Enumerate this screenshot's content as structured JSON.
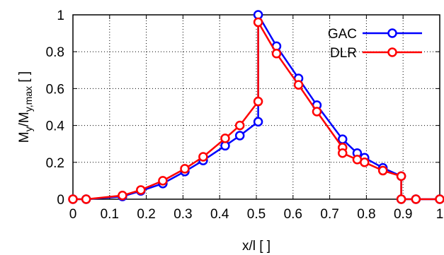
{
  "chart_data": {
    "type": "line",
    "xlabel": "x/l [ ]",
    "ylabel": {
      "prefix": "M",
      "sub1": "y",
      "mid": "/M",
      "sub2": "y,max",
      "suffix": " [ ]"
    },
    "xlim": [
      0,
      1
    ],
    "ylim": [
      0,
      1
    ],
    "xticks": [
      0,
      0.1,
      0.2,
      0.3,
      0.4,
      0.5,
      0.6,
      0.7,
      0.8,
      0.9,
      1
    ],
    "yticks": [
      0,
      0.2,
      0.4,
      0.6,
      0.8,
      1
    ],
    "grid": true,
    "legend_position": "top-right",
    "series": [
      {
        "name": "GAC",
        "color": "#0000ff",
        "x": [
          0,
          0.036,
          0.135,
          0.185,
          0.245,
          0.305,
          0.355,
          0.415,
          0.455,
          0.505,
          0.505,
          0.555,
          0.615,
          0.665,
          0.735,
          0.775,
          0.795,
          0.845,
          0.895,
          0.895,
          0.935,
          1.0
        ],
        "y": [
          0,
          0,
          0.015,
          0.045,
          0.085,
          0.15,
          0.21,
          0.29,
          0.345,
          0.42,
          1.0,
          0.83,
          0.655,
          0.51,
          0.325,
          0.25,
          0.225,
          0.17,
          0.125,
          0,
          0,
          0
        ]
      },
      {
        "name": "DLR",
        "color": "#ff0000",
        "x": [
          0,
          0.036,
          0.135,
          0.185,
          0.245,
          0.305,
          0.355,
          0.415,
          0.455,
          0.505,
          0.505,
          0.555,
          0.615,
          0.665,
          0.735,
          0.735,
          0.775,
          0.795,
          0.845,
          0.895,
          0.895,
          0.935,
          1.0
        ],
        "y": [
          0,
          0,
          0.02,
          0.05,
          0.1,
          0.165,
          0.23,
          0.33,
          0.4,
          0.53,
          0.96,
          0.79,
          0.62,
          0.475,
          0.28,
          0.25,
          0.215,
          0.2,
          0.155,
          0.125,
          0,
          0,
          0
        ]
      }
    ]
  }
}
